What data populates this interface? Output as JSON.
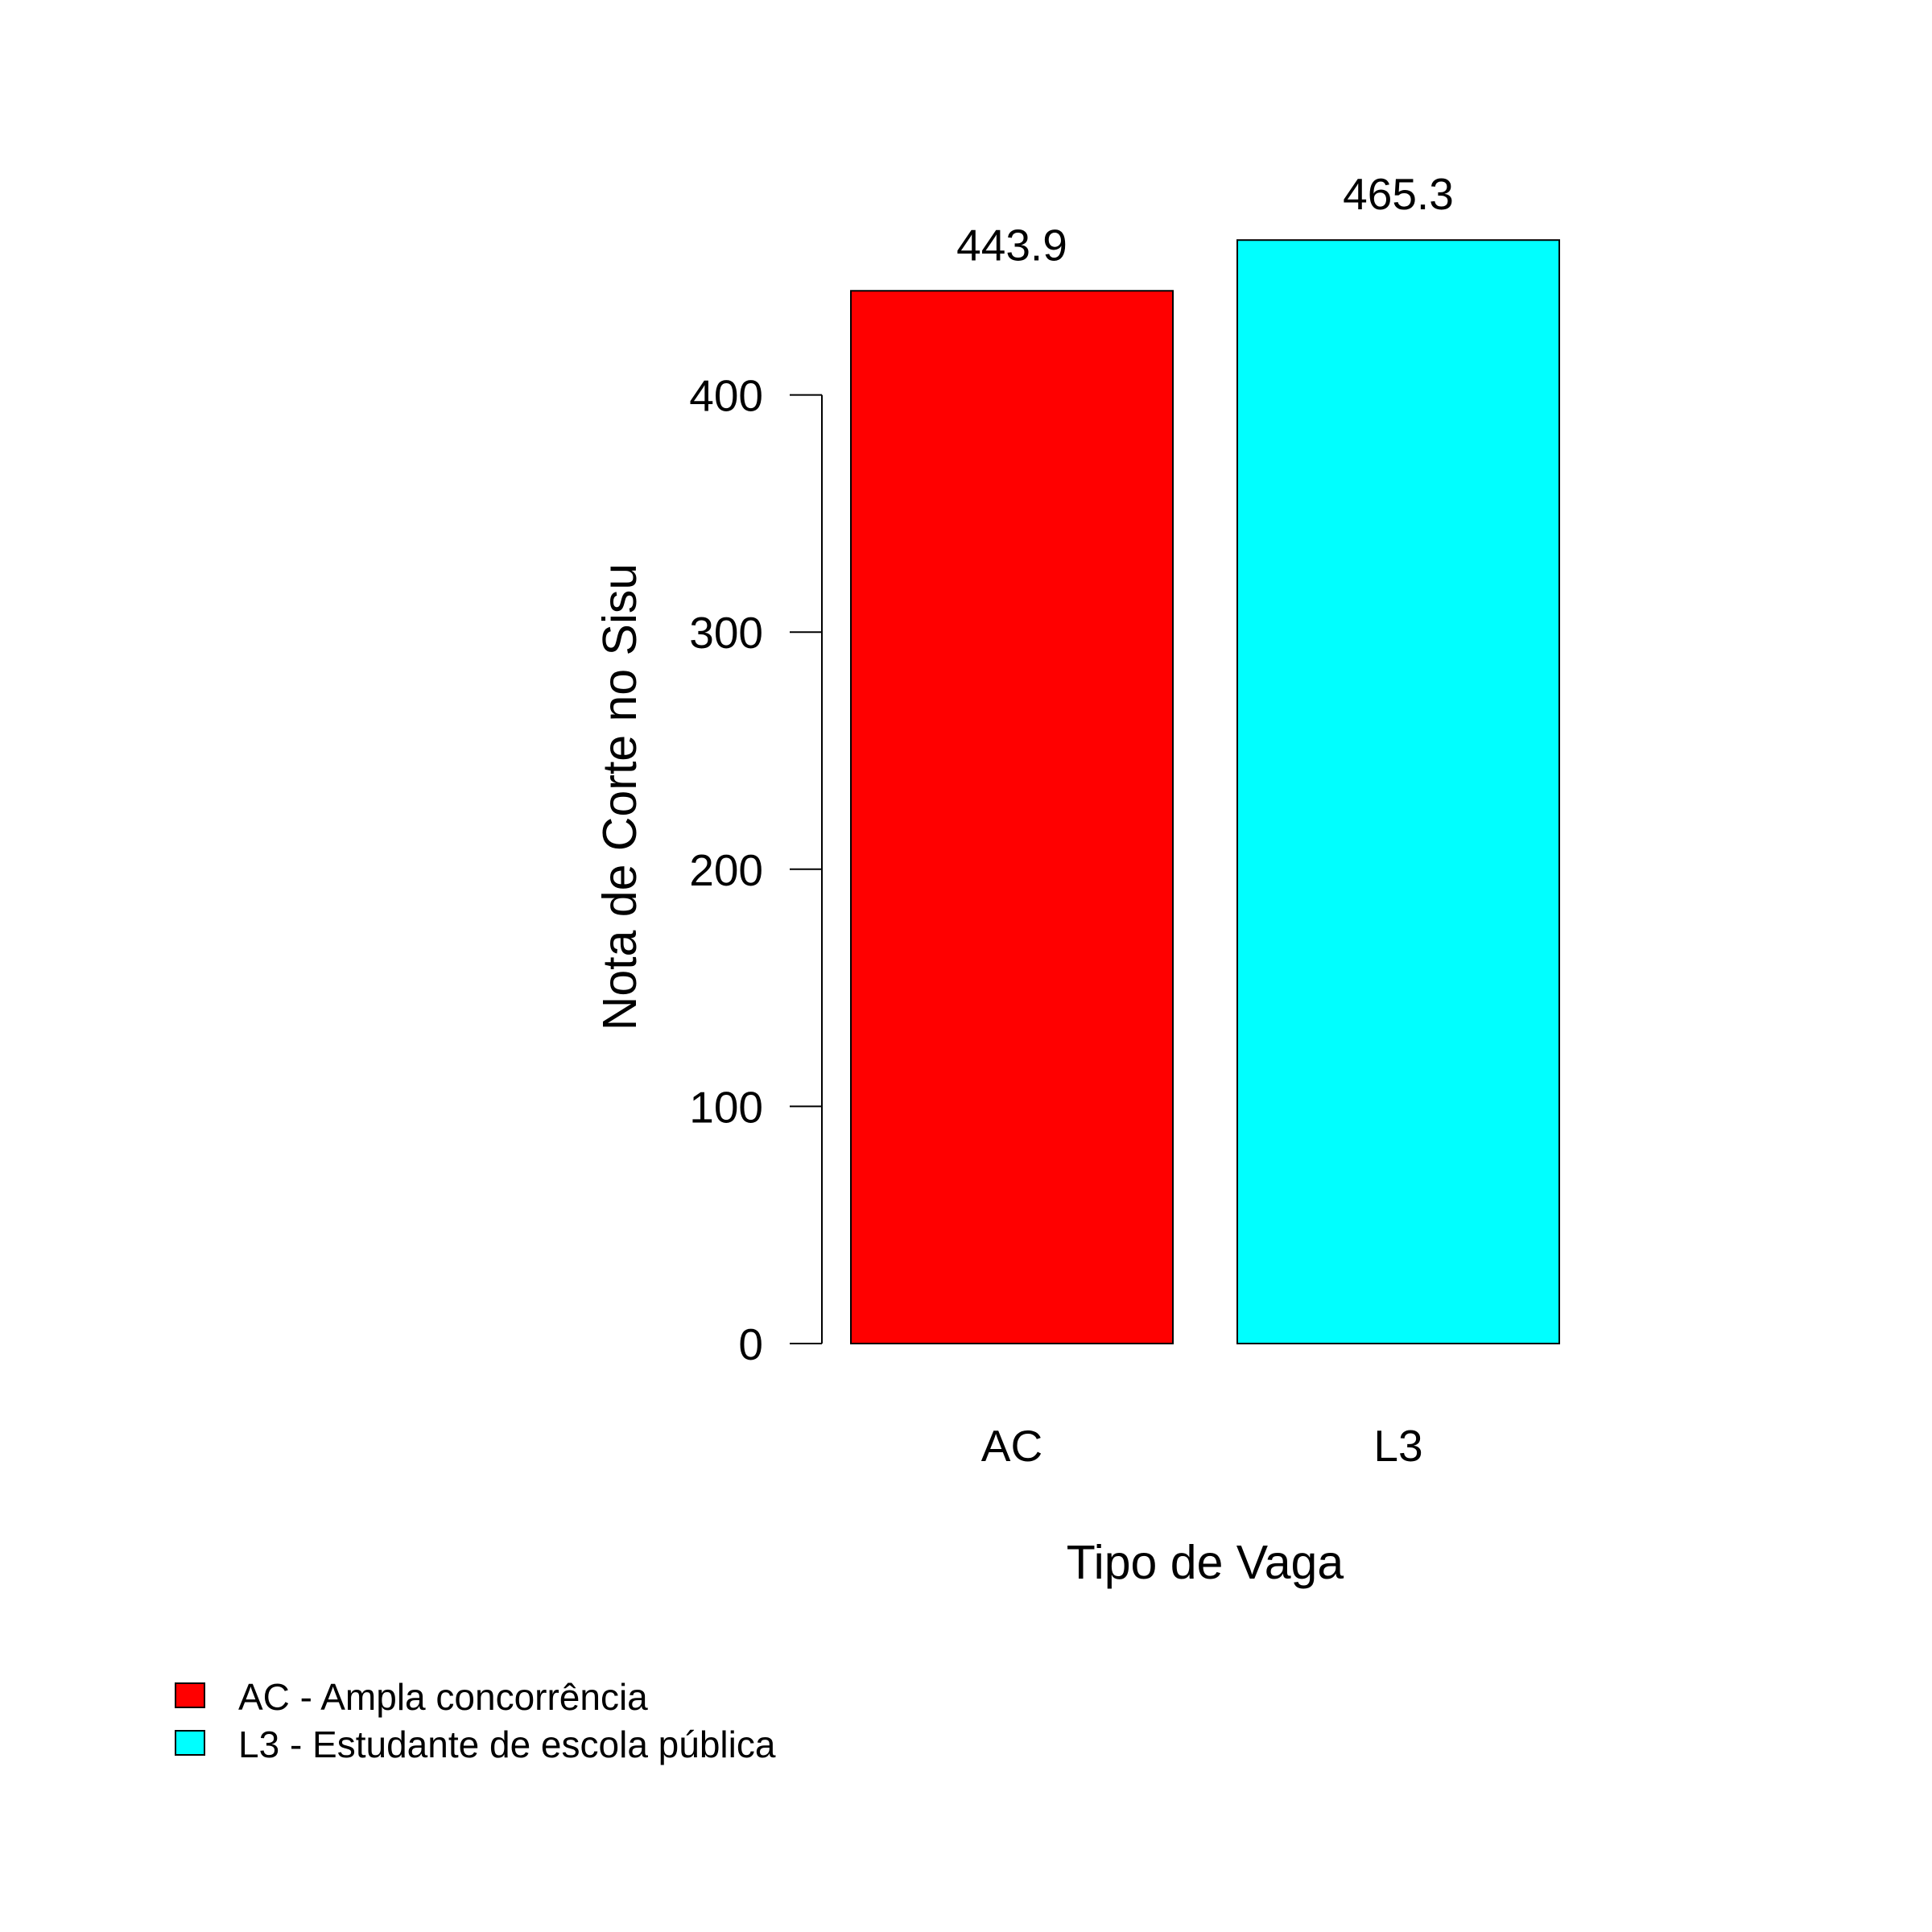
{
  "chart_data": {
    "type": "bar",
    "categories": [
      "AC",
      "L3"
    ],
    "values": [
      443.9,
      465.3
    ],
    "value_labels": [
      "443.9",
      "465.3"
    ],
    "colors": [
      "#ff0000",
      "#00ffff"
    ],
    "xlabel": "Tipo de Vaga",
    "ylabel": "Nota de Corte no Sisu",
    "ylim": [
      0,
      500
    ],
    "yticks": [
      0,
      100,
      200,
      300,
      400
    ],
    "ytick_labels": [
      "0",
      "100",
      "200",
      "300",
      "400"
    ],
    "grid": false,
    "legend": {
      "position": "bottom-left",
      "entries": [
        {
          "label": "AC - Ampla concorrência",
          "color": "#ff0000"
        },
        {
          "label": "L3 - Estudante de escola pública",
          "color": "#00ffff"
        }
      ]
    }
  }
}
